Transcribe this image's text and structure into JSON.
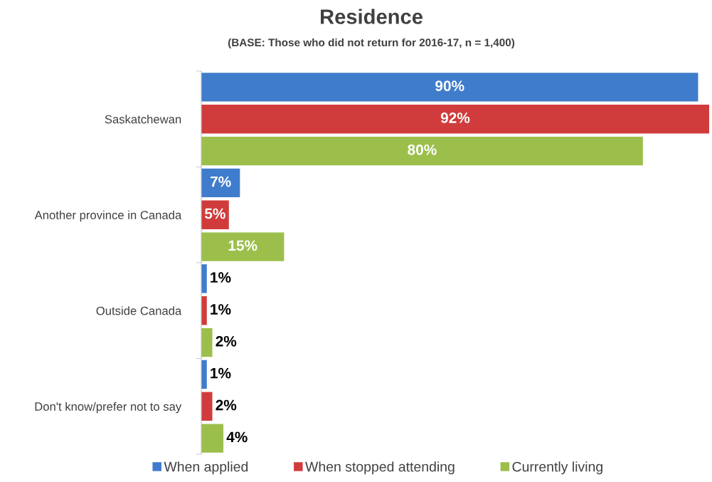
{
  "chart_data": {
    "type": "bar",
    "orientation": "horizontal",
    "title": "Residence",
    "subtitle": "(BASE: Those who did not return for 2016-17, n = 1,400)",
    "categories": [
      "Saskatchewan",
      "Another province in Canada",
      "Outside Canada",
      "Don't know/prefer not to say"
    ],
    "series": [
      {
        "name": "When applied",
        "color": "#3f7ccc",
        "values": [
          90,
          7,
          1,
          1
        ],
        "value_labels": [
          "90%",
          "7%",
          "1%",
          "1%"
        ]
      },
      {
        "name": "When stopped attending",
        "color": "#d03c3c",
        "values": [
          92,
          5,
          1,
          2
        ],
        "value_labels": [
          "92%",
          "5%",
          "1%",
          "2%"
        ]
      },
      {
        "name": "Currently living",
        "color": "#9cbf4c",
        "values": [
          80,
          15,
          2,
          4
        ],
        "value_labels": [
          "80%",
          "15%",
          "2%",
          "4%"
        ]
      }
    ],
    "xlim": [
      0,
      92
    ],
    "tick_labels": "y",
    "legend": "bottom"
  }
}
